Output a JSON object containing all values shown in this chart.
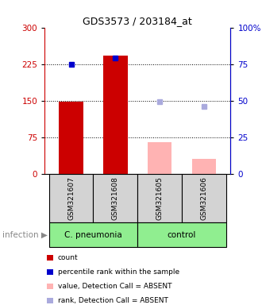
{
  "title": "GDS3573 / 203184_at",
  "samples": [
    "GSM321607",
    "GSM321608",
    "GSM321605",
    "GSM321606"
  ],
  "bar_values": [
    148,
    242,
    65,
    30
  ],
  "bar_colors": [
    "#cc0000",
    "#cc0000",
    "#ffb3b3",
    "#ffb3b3"
  ],
  "percentile_values": [
    225,
    238,
    null,
    null
  ],
  "percentile_colors": [
    "#0000cc",
    "#0000cc",
    null,
    null
  ],
  "rank_absent_values": [
    null,
    null,
    148,
    138
  ],
  "rank_absent_colors": [
    null,
    null,
    "#aaaadd",
    "#aaaadd"
  ],
  "ylim_left": [
    0,
    300
  ],
  "ylim_right": [
    0,
    100
  ],
  "yticks_left": [
    0,
    75,
    150,
    225,
    300
  ],
  "yticks_right": [
    0,
    25,
    50,
    75,
    100
  ],
  "yticklabels_right": [
    "0",
    "25",
    "50",
    "75",
    "100%"
  ],
  "dotted_lines": [
    75,
    150,
    225
  ],
  "left_tick_color": "#cc0000",
  "right_tick_color": "#0000cc",
  "legend": [
    {
      "label": "count",
      "color": "#cc0000"
    },
    {
      "label": "percentile rank within the sample",
      "color": "#0000cc"
    },
    {
      "label": "value, Detection Call = ABSENT",
      "color": "#ffb3b3"
    },
    {
      "label": "rank, Detection Call = ABSENT",
      "color": "#aaaadd"
    }
  ],
  "sample_bg_color": "#d3d3d3",
  "group_pneumonia_color": "#90EE90",
  "group_control_color": "#90EE90",
  "group_label": "infection"
}
